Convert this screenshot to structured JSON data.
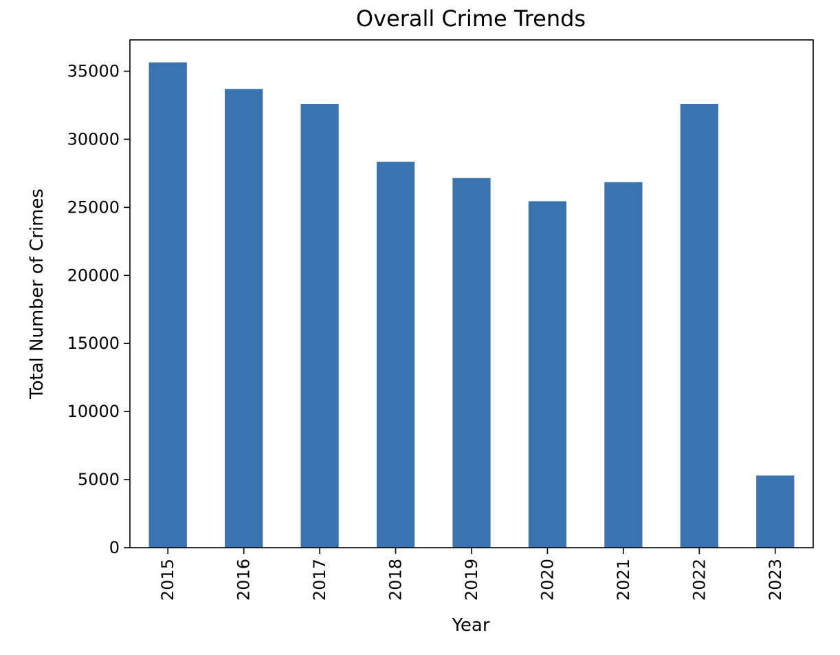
{
  "chart_data": {
    "type": "bar",
    "title": "Overall Crime Trends",
    "xlabel": "Year",
    "ylabel": "Total Number of Crimes",
    "categories": [
      "2015",
      "2016",
      "2017",
      "2018",
      "2019",
      "2020",
      "2021",
      "2022",
      "2023"
    ],
    "values": [
      35650,
      33700,
      32600,
      28350,
      27150,
      25450,
      26850,
      32600,
      5300
    ],
    "ylim": [
      0,
      37300
    ],
    "yticks": [
      0,
      5000,
      10000,
      15000,
      20000,
      25000,
      30000,
      35000
    ],
    "ytick_labels": [
      "0",
      "5000",
      "10000",
      "15000",
      "20000",
      "25000",
      "30000",
      "35000"
    ],
    "grid": false,
    "legend": "none",
    "colors": {
      "bar": "#3a74b0",
      "axes": "#000000",
      "background": "#ffffff"
    }
  }
}
